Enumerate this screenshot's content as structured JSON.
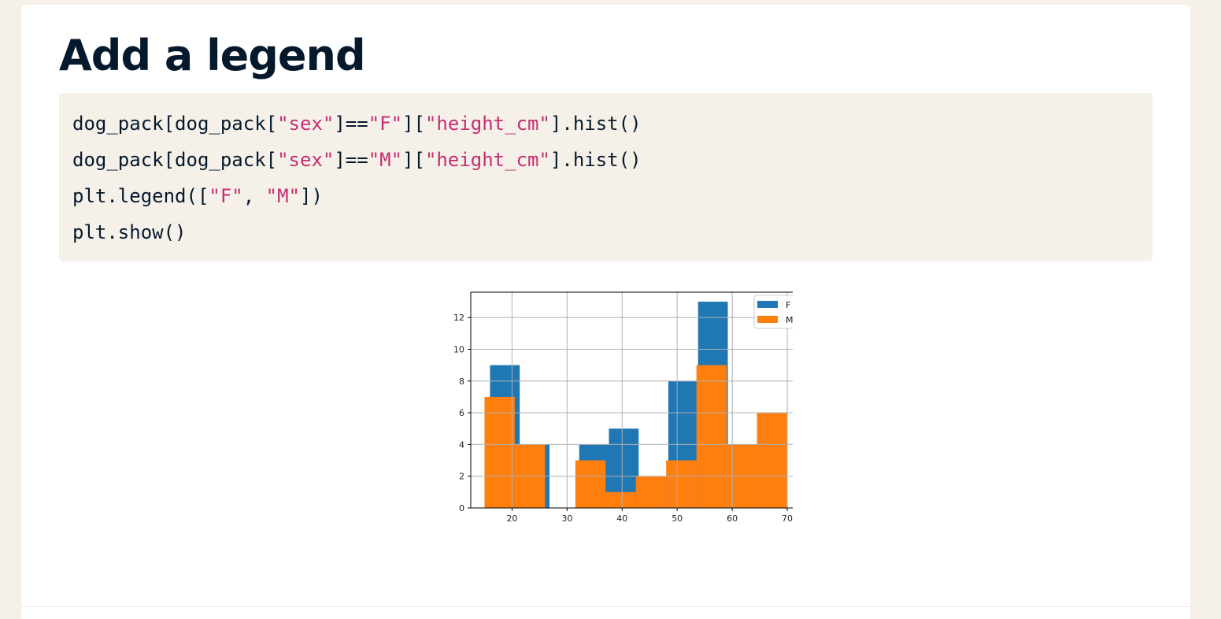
{
  "slide": {
    "title": "Add a legend",
    "code_lines": [
      [
        {
          "text": "dog_pack[dog_pack[",
          "kind": "plain"
        },
        {
          "text": "\"sex\"",
          "kind": "string"
        },
        {
          "text": "]==",
          "kind": "plain"
        },
        {
          "text": "\"F\"",
          "kind": "string"
        },
        {
          "text": "][",
          "kind": "plain"
        },
        {
          "text": "\"height_cm\"",
          "kind": "string"
        },
        {
          "text": "].hist()",
          "kind": "plain"
        }
      ],
      [
        {
          "text": "dog_pack[dog_pack[",
          "kind": "plain"
        },
        {
          "text": "\"sex\"",
          "kind": "string"
        },
        {
          "text": "]==",
          "kind": "plain"
        },
        {
          "text": "\"M\"",
          "kind": "string"
        },
        {
          "text": "][",
          "kind": "plain"
        },
        {
          "text": "\"height_cm\"",
          "kind": "string"
        },
        {
          "text": "].hist()",
          "kind": "plain"
        }
      ],
      [
        {
          "text": "plt.legend([",
          "kind": "plain"
        },
        {
          "text": "\"F\"",
          "kind": "string"
        },
        {
          "text": ", ",
          "kind": "plain"
        },
        {
          "text": "\"M\"",
          "kind": "string"
        },
        {
          "text": "])",
          "kind": "plain"
        }
      ],
      [
        {
          "text": "plt.show()",
          "kind": "plain"
        }
      ]
    ]
  },
  "colors": {
    "background": "#f5f1e9",
    "title": "#05192d",
    "code_string": "#c62d72",
    "series_F": "#1f77b4",
    "series_M": "#ff7f0e"
  },
  "chart_data": {
    "type": "bar",
    "title": "",
    "xlabel": "",
    "ylabel": "",
    "xlim": [
      12.5,
      73
    ],
    "ylim": [
      0,
      13.6
    ],
    "x_ticks": [
      20,
      30,
      40,
      50,
      60,
      70
    ],
    "y_ticks": [
      0,
      2,
      4,
      6,
      8,
      10,
      12
    ],
    "grid": true,
    "legend": {
      "placement": "top-right",
      "entries": [
        "F",
        "M"
      ]
    },
    "series": [
      {
        "name": "F",
        "color": "#1f77b4",
        "bins": [
          {
            "x0": 16.0,
            "x1": 21.4,
            "count": 9
          },
          {
            "x0": 21.4,
            "x1": 26.8,
            "count": 4
          },
          {
            "x0": 26.8,
            "x1": 32.2,
            "count": 0
          },
          {
            "x0": 32.2,
            "x1": 37.6,
            "count": 4
          },
          {
            "x0": 37.6,
            "x1": 43.0,
            "count": 5
          },
          {
            "x0": 43.0,
            "x1": 48.4,
            "count": 2
          },
          {
            "x0": 48.4,
            "x1": 53.8,
            "count": 8
          },
          {
            "x0": 53.8,
            "x1": 59.2,
            "count": 13
          },
          {
            "x0": 59.2,
            "x1": 64.6,
            "count": 4
          },
          {
            "x0": 64.6,
            "x1": 70.0,
            "count": 5
          }
        ]
      },
      {
        "name": "M",
        "color": "#ff7f0e",
        "bins": [
          {
            "x0": 15.0,
            "x1": 20.5,
            "count": 7
          },
          {
            "x0": 20.5,
            "x1": 26.0,
            "count": 4
          },
          {
            "x0": 26.0,
            "x1": 31.5,
            "count": 0
          },
          {
            "x0": 31.5,
            "x1": 37.0,
            "count": 3
          },
          {
            "x0": 37.0,
            "x1": 42.5,
            "count": 1
          },
          {
            "x0": 42.5,
            "x1": 48.0,
            "count": 2
          },
          {
            "x0": 48.0,
            "x1": 53.5,
            "count": 3
          },
          {
            "x0": 53.5,
            "x1": 59.0,
            "count": 9
          },
          {
            "x0": 59.0,
            "x1": 64.5,
            "count": 4
          },
          {
            "x0": 64.5,
            "x1": 70.0,
            "count": 6
          }
        ]
      }
    ]
  }
}
